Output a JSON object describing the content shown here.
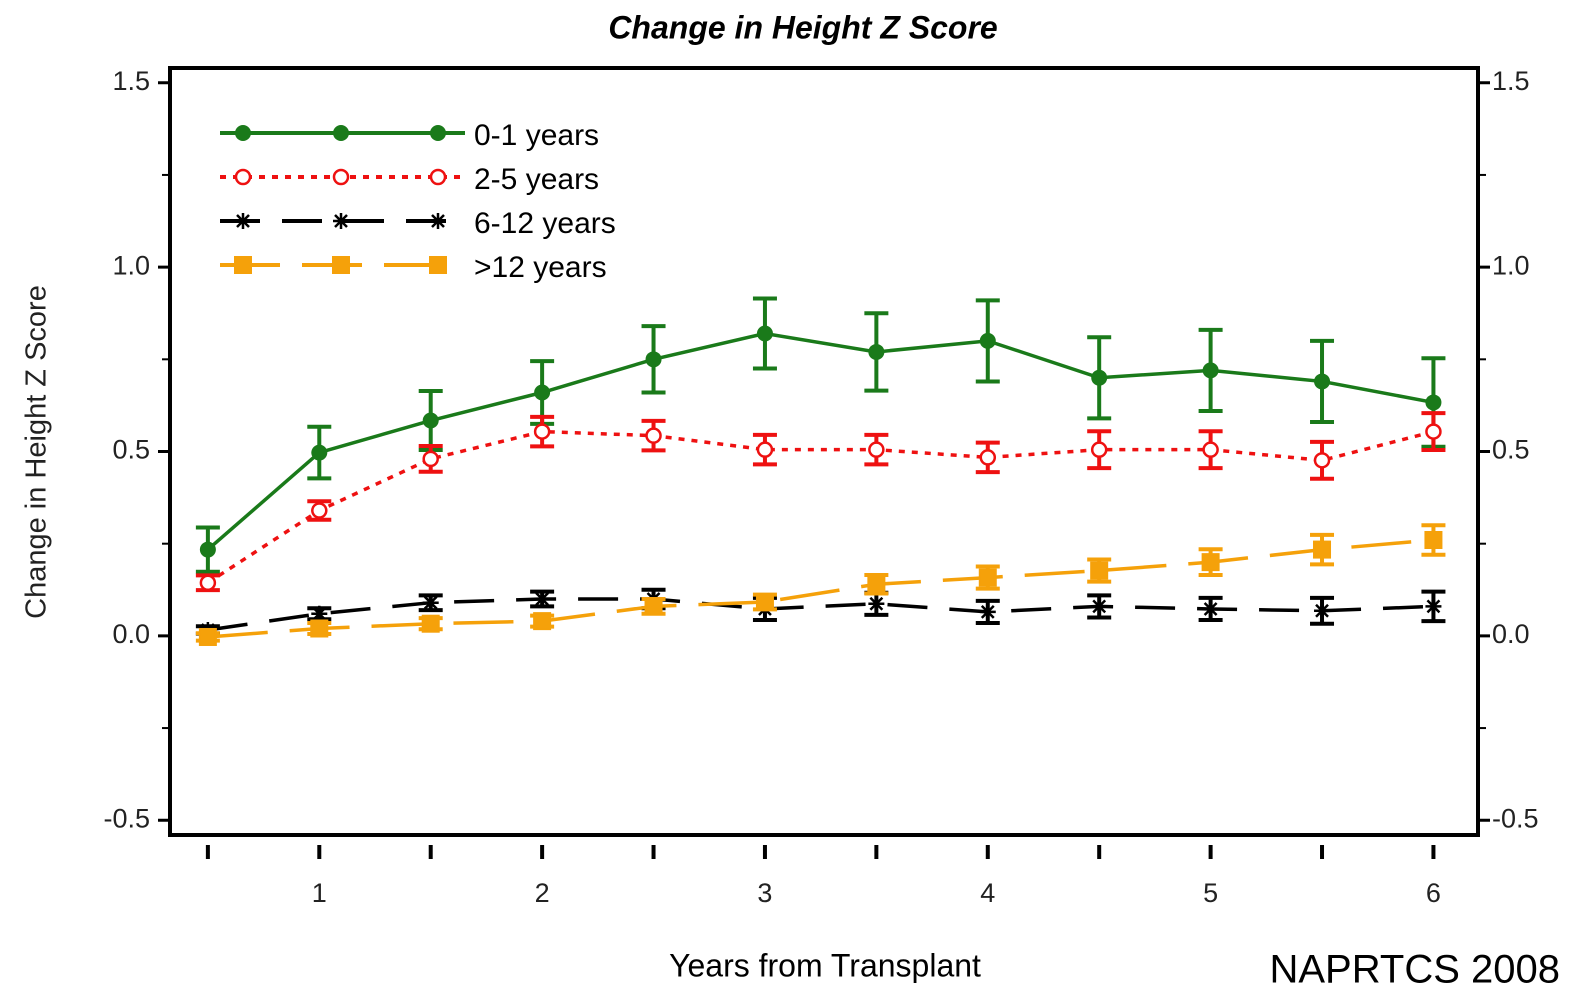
{
  "chart_data": {
    "type": "line",
    "title": "Change in Height Z Score",
    "x_label": "Years from Transplant",
    "y_label": "Change in Height Z Score",
    "source": "NAPRTCS 2008",
    "x": [
      0.5,
      1,
      1.5,
      2,
      2.5,
      3,
      3.5,
      4,
      4.5,
      5,
      5.5,
      6
    ],
    "xlim": [
      0.33,
      6.2
    ],
    "xticks": [
      1,
      2,
      3,
      4,
      5,
      6
    ],
    "xminorticks": [
      0.5,
      1.5,
      2.5,
      3.5,
      4.5,
      5.5
    ],
    "ylim": [
      -0.54,
      1.54
    ],
    "yticks": [
      {
        "value": -0.5,
        "label": "-0.5"
      },
      {
        "value": 0,
        "label": "0.0"
      },
      {
        "value": 0.5,
        "label": "0.5"
      },
      {
        "value": 1,
        "label": "1.0"
      },
      {
        "value": 1.5,
        "label": "1.5"
      }
    ],
    "yminorticks": [
      -0.25,
      0.25,
      0.75,
      1.25
    ],
    "right_axis_labels": true,
    "legend": "upper left",
    "series": [
      {
        "name": "0-1 years",
        "color": "#1a7a1a",
        "marker": "filled-circle",
        "dash": "none",
        "values": [
          0.234,
          0.497,
          0.584,
          0.66,
          0.75,
          0.82,
          0.77,
          0.8,
          0.7,
          0.72,
          0.69,
          0.633
        ],
        "errors": [
          0.06,
          0.07,
          0.08,
          0.085,
          0.09,
          0.095,
          0.105,
          0.11,
          0.11,
          0.11,
          0.11,
          0.12
        ]
      },
      {
        "name": "2-5 years",
        "color": "#ee1111",
        "marker": "open-circle",
        "dash": "6 7",
        "values": [
          0.144,
          0.34,
          0.48,
          0.554,
          0.543,
          0.505,
          0.505,
          0.484,
          0.505,
          0.505,
          0.476,
          0.554
        ],
        "errors": [
          0.02,
          0.025,
          0.035,
          0.04,
          0.04,
          0.04,
          0.04,
          0.04,
          0.05,
          0.05,
          0.05,
          0.05
        ]
      },
      {
        "name": "6-12 years",
        "color": "#000000",
        "marker": "star",
        "dash": "40 22",
        "values": [
          0.016,
          0.06,
          0.09,
          0.1,
          0.1,
          0.073,
          0.087,
          0.065,
          0.08,
          0.073,
          0.068,
          0.08
        ],
        "errors": [
          0.01,
          0.015,
          0.02,
          0.02,
          0.025,
          0.03,
          0.03,
          0.03,
          0.03,
          0.03,
          0.035,
          0.04
        ]
      },
      {
        "name": ">12 years",
        "color": "#f5a10a",
        "marker": "square",
        "dash": "60 22",
        "values": [
          -0.003,
          0.02,
          0.033,
          0.04,
          0.08,
          0.092,
          0.14,
          0.158,
          0.177,
          0.2,
          0.234,
          0.26
        ],
        "errors": [
          0.01,
          0.015,
          0.015,
          0.015,
          0.02,
          0.02,
          0.025,
          0.03,
          0.03,
          0.035,
          0.04,
          0.04
        ]
      }
    ]
  }
}
